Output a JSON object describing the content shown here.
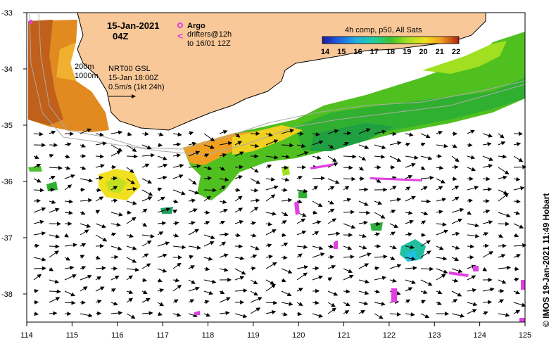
{
  "header": {
    "date": "15-Jan-2021",
    "time": "04Z"
  },
  "argo": {
    "label": "Argo",
    "drifters_line1": "drifters@12h",
    "drifters_line2": "to 16/01 12Z",
    "color": "#e040e0"
  },
  "colorbar": {
    "title": "4h comp, p50, All Sats",
    "ticks": [
      "14",
      "15",
      "16",
      "17",
      "18",
      "19",
      "20",
      "21",
      "22"
    ],
    "colors": [
      "#1a1aa0",
      "#2050e0",
      "#20a0e0",
      "#20d0c0",
      "#30c030",
      "#90e020",
      "#f0e020",
      "#f0a020",
      "#e06010",
      "#b02010"
    ]
  },
  "contours": {
    "depth1": "200m",
    "depth2": "1000m"
  },
  "currents": {
    "line1": "NRT00 GSL",
    "line2": "15-Jan 18:00Z",
    "line3": "0.5m/s (1kt 24h)"
  },
  "credit": "© IMOS 19-Jan-2021 11:49 Hobart",
  "land_color": "#f9c898",
  "axes": {
    "x_ticks": [
      "114",
      "115",
      "116",
      "117",
      "118",
      "119",
      "120",
      "121",
      "122",
      "123",
      "124",
      "125"
    ],
    "y_ticks": [
      "-33",
      "-34",
      "-35",
      "-36",
      "-37",
      "-38"
    ],
    "xlim": [
      114,
      125
    ],
    "ylim": [
      -38.5,
      -33
    ]
  },
  "argo_floats": [
    {
      "lon": 114.1,
      "lat": -33.15
    }
  ]
}
